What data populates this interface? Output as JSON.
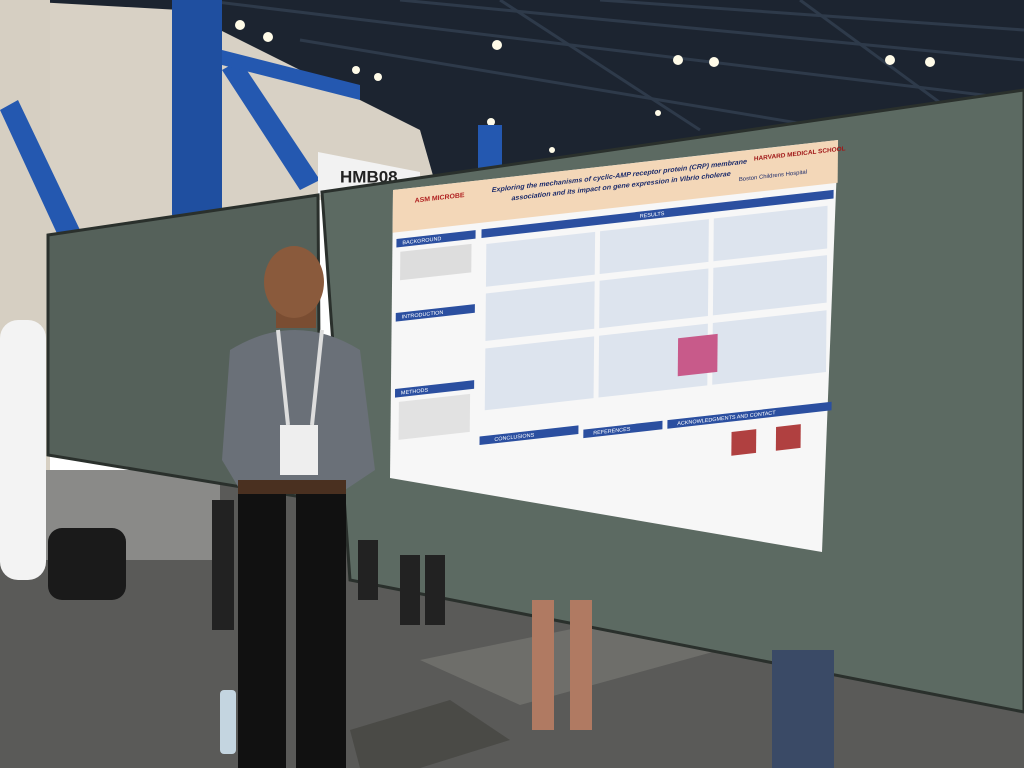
{
  "sign": "HMB08",
  "poster": {
    "title_line1": "Exploring the mechanisms of cyclic-AMP receptor protein (CRP) membrane",
    "title_line2": "association and its impact on gene expression in Vibrio cholerae",
    "logo_left": "ASM MICROBE",
    "logo_right": "HARVARD MEDICAL SCHOOL",
    "hospital": "Boston Childrens Hospital",
    "sections": {
      "background": "BACKGROUND",
      "introduction": "INTRODUCTION",
      "methods": "METHODS",
      "results": "RESULTS",
      "conclusions": "CONCLUSIONS",
      "references": "REFERENCES",
      "acknowledgments": "ACKNOWLEDGMENTS AND CONTACT"
    }
  }
}
